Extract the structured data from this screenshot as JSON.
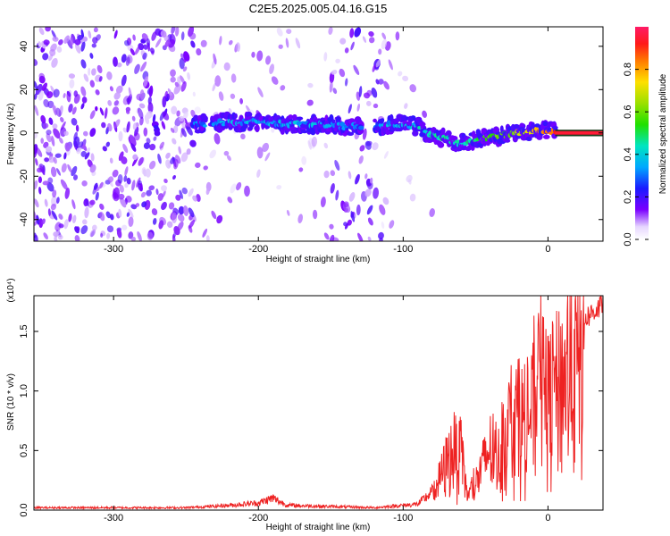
{
  "title": "C2E5.2025.005.04.16.G15",
  "colors": {
    "snr_line": "#ee2222",
    "spectrogram_ridge": "#2fd0ff",
    "spectrogram_background": "#7a00ff",
    "axis": "#000000"
  },
  "chart_data": [
    {
      "type": "heatmap",
      "panel": "top",
      "xlabel": "Height of straight line (km)",
      "ylabel": "Frequency (Hz)",
      "xlim": [
        -355,
        38
      ],
      "ylim": [
        -50,
        49
      ],
      "xticks": [
        "-300",
        "-200",
        "-100",
        "0"
      ],
      "yticks": [
        "-40",
        "-20",
        "0",
        "20",
        "40"
      ],
      "grid": false,
      "colorbar": {
        "label": "Normalized spectral amplitude",
        "range": [
          0.0,
          1.0
        ],
        "ticks": [
          "0.0",
          "0.2",
          "0.4",
          "0.6",
          "0.8"
        ],
        "colormap": "rainbow"
      },
      "ridge": {
        "x": [
          -280,
          -240,
          -220,
          -200,
          -180,
          -160,
          -140,
          -120,
          -110,
          -100,
          -90,
          -80,
          -70,
          -60,
          -50,
          -40,
          -30,
          -20,
          -10,
          0,
          10,
          20,
          38
        ],
        "frequency": [
          3,
          4,
          5,
          5,
          4,
          4,
          3,
          3,
          4,
          4,
          3,
          -1,
          -3,
          -5,
          -3,
          -2,
          -1,
          0,
          1,
          1,
          0,
          0,
          0
        ],
        "amplitude": [
          0.2,
          0.3,
          0.35,
          0.35,
          0.35,
          0.35,
          0.3,
          0.3,
          0.35,
          0.35,
          0.4,
          0.45,
          0.45,
          0.4,
          0.5,
          0.55,
          0.6,
          0.65,
          0.75,
          0.85,
          0.9,
          0.95,
          1.0
        ]
      }
    },
    {
      "type": "line",
      "panel": "bottom",
      "xlabel": "Height of straight line (km)",
      "ylabel": "SNR (10 * v/v)",
      "y_multiplier": "(x10⁴)",
      "xlim": [
        -355,
        38
      ],
      "ylim": [
        0,
        1.8
      ],
      "xticks": [
        "-300",
        "-200",
        "-100",
        "0"
      ],
      "yticks": [
        "0.0",
        "0.5",
        "1.0",
        "1.5"
      ],
      "grid": false,
      "series": [
        {
          "x": [
            -355,
            -300,
            -250,
            -220,
            -200,
            -190,
            -180,
            -150,
            -120,
            -100,
            -90,
            -80,
            -75,
            -70,
            -65,
            -60,
            -58,
            -55,
            -50,
            -45,
            -40,
            -35,
            -30,
            -25,
            -20,
            -15,
            -10,
            -5,
            0,
            10,
            20,
            30,
            38
          ],
          "y": [
            0.02,
            0.02,
            0.02,
            0.04,
            0.06,
            0.1,
            0.04,
            0.03,
            0.02,
            0.04,
            0.05,
            0.15,
            0.35,
            0.55,
            0.7,
            0.6,
            0.4,
            0.15,
            0.3,
            0.5,
            0.7,
            0.55,
            0.8,
            1.0,
            1.1,
            0.95,
            1.2,
            1.4,
            1.25,
            1.5,
            1.62,
            1.72,
            1.8
          ]
        }
      ]
    }
  ]
}
